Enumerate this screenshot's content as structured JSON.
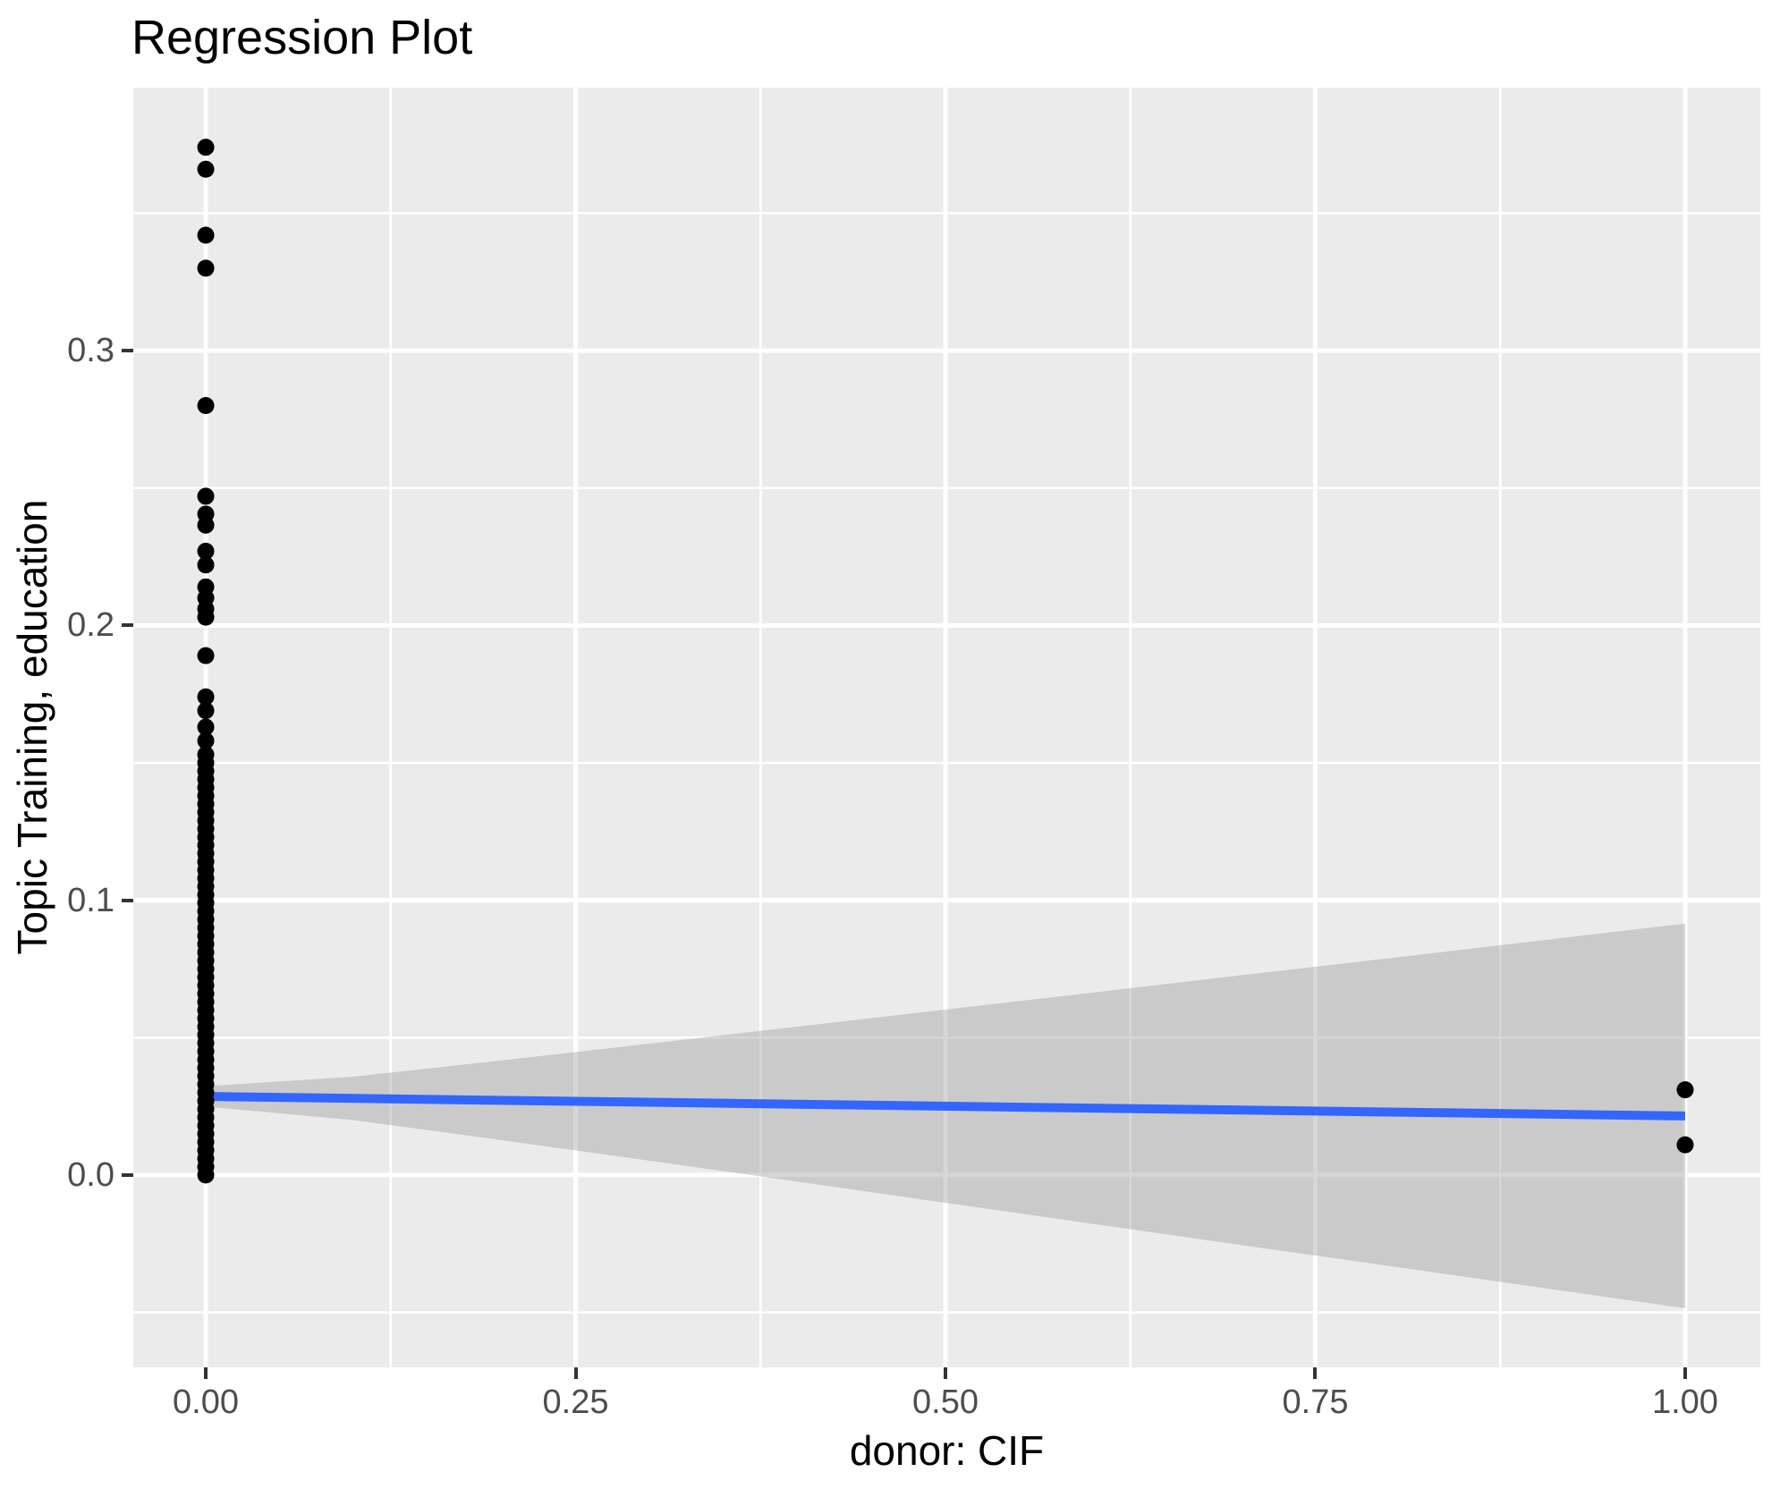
{
  "chart_data": {
    "type": "scatter",
    "title": "Regression Plot",
    "xlabel": "donor: CIF",
    "ylabel": "Topic Training, education",
    "xlim": [
      -0.049,
      1.0508
    ],
    "ylim": [
      -0.07,
      0.3957
    ],
    "x_ticks": {
      "values": [
        0,
        0.25,
        0.5,
        0.75,
        1.0
      ],
      "labels": [
        "0.00",
        "0.25",
        "0.50",
        "0.75",
        "1.00"
      ]
    },
    "y_ticks": {
      "values": [
        0,
        0.1,
        0.2,
        0.3
      ],
      "labels": [
        "0.0",
        "0.1",
        "0.2",
        "0.3"
      ]
    },
    "x_minor": [
      0.125,
      0.375,
      0.625,
      0.875
    ],
    "y_minor": [
      -0.05,
      0.05,
      0.15,
      0.25,
      0.35
    ],
    "grid_on": true,
    "legend": "none",
    "series": {
      "points_x0_distinct": [
        0.374,
        0.366,
        0.342,
        0.33,
        0.28,
        0.247,
        0.2405,
        0.2365,
        0.227,
        0.222,
        0.214,
        0.21,
        0.206,
        0.203,
        0.189,
        0.174,
        0.169,
        0.163,
        0.158,
        0.153
      ],
      "points_x0_dense": [
        0.15,
        0.147,
        0.144,
        0.141,
        0.138,
        0.135,
        0.132,
        0.129,
        0.126,
        0.123,
        0.12,
        0.117,
        0.114,
        0.111,
        0.108,
        0.105,
        0.102,
        0.099,
        0.096,
        0.093,
        0.09,
        0.087,
        0.084,
        0.081,
        0.078,
        0.075,
        0.072,
        0.069,
        0.066,
        0.063,
        0.06,
        0.057,
        0.054,
        0.051,
        0.048,
        0.045,
        0.042,
        0.039,
        0.036,
        0.033,
        0.03,
        0.027,
        0.024,
        0.021,
        0.018,
        0.015,
        0.012,
        0.009,
        0.006,
        0.003,
        0.0
      ],
      "points_x1": [
        0.031,
        0.011
      ]
    },
    "regression_line": {
      "x": [
        0,
        1
      ],
      "y": [
        0.0286,
        0.0215
      ]
    },
    "confidence_band": {
      "x": [
        0.0,
        0.1,
        0.2,
        0.3,
        0.4,
        0.5,
        0.6,
        0.7,
        0.8,
        0.9,
        1.0
      ],
      "upper": [
        0.0323,
        0.0358,
        0.0417,
        0.0478,
        0.054,
        0.0602,
        0.0664,
        0.0727,
        0.0789,
        0.0852,
        0.0915
      ],
      "lower": [
        0.0249,
        0.02,
        0.0127,
        0.0052,
        -0.0024,
        -0.0101,
        -0.0178,
        -0.0255,
        -0.0331,
        -0.0408,
        -0.0485
      ]
    },
    "style": {
      "panel_background": "#EBEBEB",
      "grid_color": "#FFFFFF",
      "major_grid_width": 5,
      "minor_grid_width": 2.5,
      "point_color": "#000000",
      "point_radius": 9.5,
      "line_color": "#3366FF",
      "line_width": 10,
      "band_fill": "#999999",
      "band_opacity": 0.4,
      "tick_label_color": "#4D4D4D",
      "tick_mark_color": "#333333"
    }
  }
}
